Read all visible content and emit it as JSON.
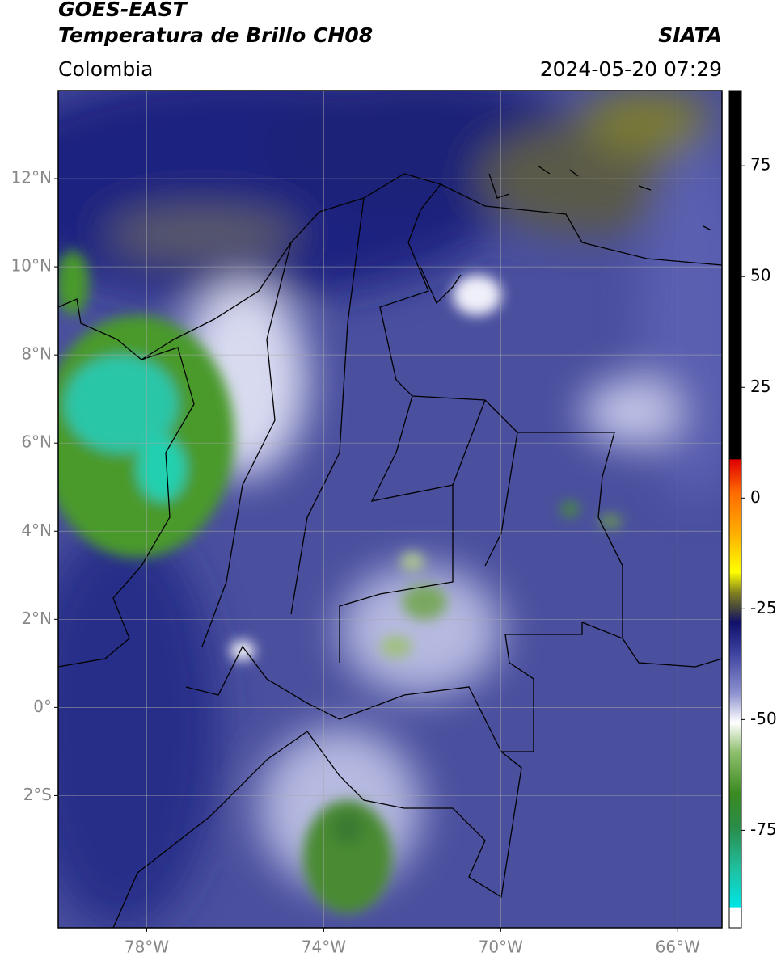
{
  "header": {
    "title": "GOES-EAST",
    "subtitle": "Temperatura de Brillo CH08",
    "region": "Colombia",
    "source": "SIATA",
    "datetime": "2024-05-20 07:29"
  },
  "map": {
    "xlim": [
      -80,
      -65
    ],
    "ylim": [
      -5,
      14
    ],
    "xticks": [
      {
        "value": -78,
        "label": "78°W"
      },
      {
        "value": -74,
        "label": "74°W"
      },
      {
        "value": -70,
        "label": "70°W"
      },
      {
        "value": -66,
        "label": "66°W"
      }
    ],
    "yticks": [
      {
        "value": 12,
        "label": "12°N"
      },
      {
        "value": 10,
        "label": "10°N"
      },
      {
        "value": 8,
        "label": "8°N"
      },
      {
        "value": 6,
        "label": "6°N"
      },
      {
        "value": 4,
        "label": "4°N"
      },
      {
        "value": 2,
        "label": "2°N"
      },
      {
        "value": 0,
        "label": "0°"
      },
      {
        "value": -2,
        "label": "2°S"
      }
    ],
    "grid": true
  },
  "colorbar": {
    "lim": [
      -97,
      92
    ],
    "ticks": [
      75,
      50,
      25,
      0,
      -25,
      -50,
      -75
    ]
  }
}
